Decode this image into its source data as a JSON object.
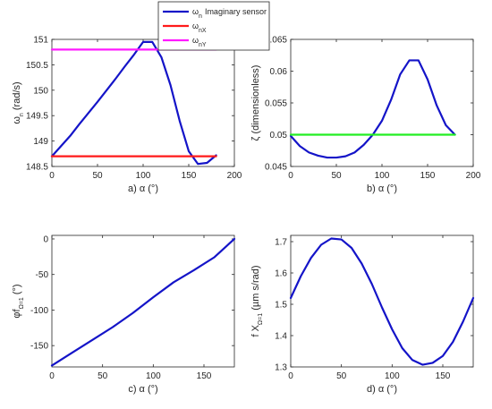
{
  "colors": {
    "blue": "#1414c8",
    "red": "#ff1a1a",
    "magenta": "#ff1aff",
    "green": "#22ee22",
    "axis": "#262626"
  },
  "legend": {
    "entries": [
      {
        "sym": "ω",
        "sub": "n",
        "text": "Imaginary sensor",
        "color": "#1414c8"
      },
      {
        "sym": "ω",
        "sub": "nX",
        "text": "",
        "color": "#ff1a1a"
      },
      {
        "sym": "ω",
        "sub": "nY",
        "text": "",
        "color": "#ff1aff"
      }
    ]
  },
  "chart_data": [
    {
      "id": "a",
      "type": "line",
      "caption": {
        "letter": "a)",
        "label": "α (°)"
      },
      "ylabel": {
        "sym": "ω",
        "sub": "n",
        "rest": " (rad/s)"
      },
      "xlim": [
        0,
        200
      ],
      "ylim": [
        148.5,
        151
      ],
      "xticks": [
        0,
        50,
        100,
        150,
        200
      ],
      "yticks": [
        148.5,
        149,
        149.5,
        150,
        150.5,
        151
      ],
      "ytick_labels": [
        "148.5",
        "149",
        "149.5",
        "150",
        "150.5",
        "151"
      ],
      "series": [
        {
          "color": "#1414c8",
          "x": [
            0,
            10,
            20,
            30,
            40,
            50,
            60,
            70,
            80,
            90,
            100,
            110,
            120,
            130,
            140,
            150,
            160,
            170,
            180
          ],
          "y": [
            148.7,
            148.9,
            149.1,
            149.33,
            149.55,
            149.77,
            150.0,
            150.23,
            150.47,
            150.7,
            150.95,
            150.95,
            150.65,
            150.1,
            149.4,
            148.8,
            148.55,
            148.57,
            148.72
          ]
        },
        {
          "color": "#ff1a1a",
          "x": [
            0,
            180
          ],
          "y": [
            148.7,
            148.7
          ]
        },
        {
          "color": "#ff1aff",
          "x": [
            0,
            180
          ],
          "y": [
            150.8,
            150.8
          ]
        }
      ]
    },
    {
      "id": "b",
      "type": "line",
      "caption": {
        "letter": "b)",
        "label": "α (°)"
      },
      "ylabel": {
        "sym": "ζ",
        "sub": "",
        "rest": " (dimensionless)"
      },
      "xlim": [
        0,
        200
      ],
      "ylim": [
        0.045,
        0.065
      ],
      "xticks": [
        0,
        50,
        100,
        150,
        200
      ],
      "yticks": [
        0.045,
        0.05,
        0.055,
        0.06,
        0.065
      ],
      "ytick_labels": [
        "0.045",
        "0.05",
        "0.055",
        "0.06",
        "0.065"
      ],
      "series": [
        {
          "color": "#1414c8",
          "x": [
            0,
            10,
            20,
            30,
            40,
            50,
            60,
            70,
            80,
            90,
            100,
            110,
            120,
            130,
            140,
            150,
            160,
            170,
            180
          ],
          "y": [
            0.0498,
            0.0482,
            0.0472,
            0.0467,
            0.0464,
            0.0464,
            0.0466,
            0.0472,
            0.0484,
            0.05,
            0.0522,
            0.0555,
            0.0595,
            0.0617,
            0.0617,
            0.0587,
            0.0546,
            0.0515,
            0.05
          ]
        },
        {
          "color": "#22ee22",
          "x": [
            0,
            180
          ],
          "y": [
            0.05,
            0.05
          ]
        }
      ]
    },
    {
      "id": "c",
      "type": "line",
      "caption": {
        "letter": "c)",
        "label": "α (°)"
      },
      "ylabel": {
        "sym": "φf",
        "sub": "Ω=1",
        "rest": " (°)"
      },
      "xlim": [
        0,
        180
      ],
      "ylim": [
        -180,
        5
      ],
      "xticks": [
        0,
        50,
        100,
        150
      ],
      "yticks": [
        -150,
        -100,
        -50,
        0
      ],
      "ytick_labels": [
        "-150",
        "-100",
        "-50",
        "0"
      ],
      "series": [
        {
          "color": "#1414c8",
          "x": [
            0,
            20,
            40,
            60,
            80,
            100,
            120,
            140,
            160,
            180
          ],
          "y": [
            -178,
            -160,
            -142,
            -124,
            -104,
            -82,
            -61,
            -44,
            -26,
            0
          ]
        }
      ]
    },
    {
      "id": "d",
      "type": "line",
      "caption": {
        "letter": "d)",
        "label": "α (°)"
      },
      "ylabel": {
        "sym": "f X",
        "sub": "Ω=1",
        "rest": " (µm s/rad)"
      },
      "xlim": [
        0,
        180
      ],
      "ylim": [
        1.3,
        1.72
      ],
      "xticks": [
        0,
        50,
        100,
        150
      ],
      "yticks": [
        1.3,
        1.4,
        1.5,
        1.6,
        1.7
      ],
      "ytick_labels": [
        "1.3",
        "1.4",
        "1.5",
        "1.6",
        "1.7"
      ],
      "series": [
        {
          "color": "#1414c8",
          "x": [
            0,
            10,
            20,
            30,
            40,
            50,
            60,
            70,
            80,
            90,
            100,
            110,
            120,
            130,
            140,
            150,
            160,
            170,
            180
          ],
          "y": [
            1.52,
            1.59,
            1.648,
            1.69,
            1.71,
            1.707,
            1.68,
            1.63,
            1.565,
            1.49,
            1.42,
            1.36,
            1.322,
            1.307,
            1.313,
            1.335,
            1.38,
            1.445,
            1.52
          ]
        }
      ]
    }
  ]
}
